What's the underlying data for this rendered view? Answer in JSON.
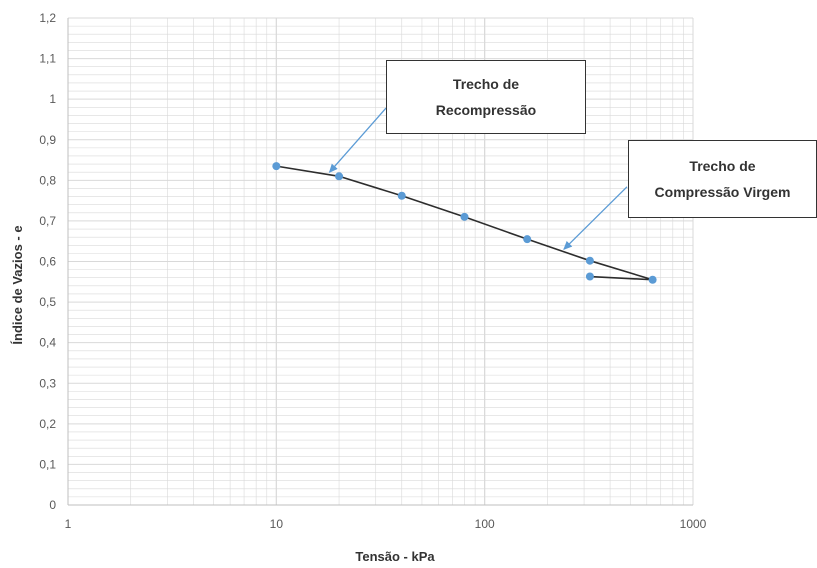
{
  "chart_data": {
    "type": "line",
    "xlabel": "Tensão - kPa",
    "ylabel": "Índice de Vazios - e",
    "xscale": "log",
    "xlim": [
      1,
      1000
    ],
    "ylim": [
      0,
      1.2
    ],
    "x_tick_labels": [
      "1",
      "10",
      "100",
      "1000"
    ],
    "y_tick_labels": [
      "0",
      "0,1",
      "0,2",
      "0,3",
      "0,4",
      "0,5",
      "0,6",
      "0,7",
      "0,8",
      "0,9",
      "1",
      "1,1",
      "1,2"
    ],
    "grid": true,
    "legend": "none",
    "series": [
      {
        "points": [
          {
            "x": 10,
            "y": 0.835
          },
          {
            "x": 20,
            "y": 0.81
          },
          {
            "x": 40,
            "y": 0.762
          },
          {
            "x": 80,
            "y": 0.71
          },
          {
            "x": 160,
            "y": 0.655
          },
          {
            "x": 320,
            "y": 0.602
          },
          {
            "x": 640,
            "y": 0.555
          },
          {
            "x": 320,
            "y": 0.563
          }
        ]
      }
    ],
    "annotations": [
      {
        "text": "Trecho de\nRecompressão",
        "x": 18,
        "y": 0.82
      },
      {
        "text": "Trecho de\nCompressão Virgem",
        "x": 240,
        "y": 0.63
      }
    ],
    "colors": {
      "line": "#2d2d2d",
      "marker": "#5b9bd5",
      "arrow": "#5b9bd5",
      "grid": "#d9d9d9"
    }
  }
}
